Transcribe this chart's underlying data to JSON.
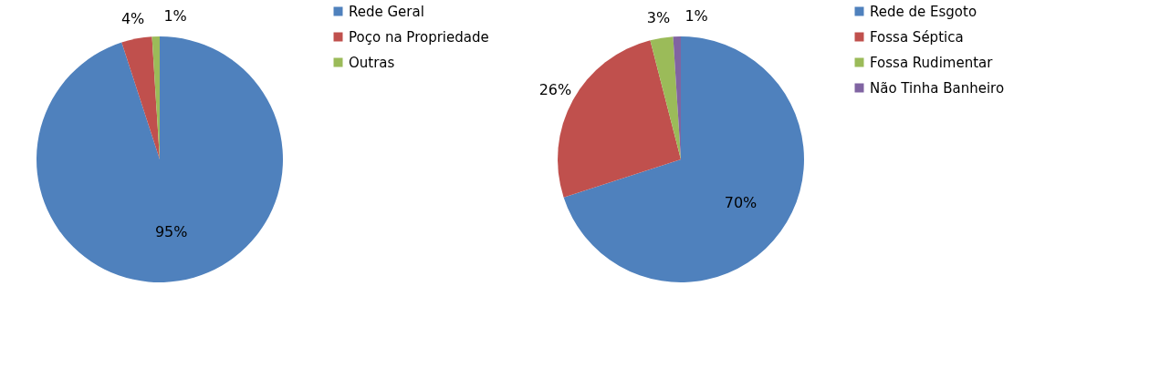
{
  "chart_data": [
    {
      "type": "pie",
      "categories": [
        "Rede Geral",
        "Poço na Propriedade",
        "Outras"
      ],
      "values": [
        95,
        4,
        1
      ],
      "colors": [
        "#4f81bd",
        "#c0504d",
        "#9bbb59"
      ],
      "value_labels": [
        "95%",
        "4%",
        "1%"
      ],
      "legend": "right"
    },
    {
      "type": "pie",
      "categories": [
        "Rede de Esgoto",
        "Fossa Séptica",
        "Fossa Rudimentar",
        "Não Tinha Banheiro"
      ],
      "values": [
        70,
        26,
        3,
        1
      ],
      "colors": [
        "#4f81bd",
        "#c0504d",
        "#9bbb59",
        "#8064a2"
      ],
      "value_labels": [
        "70%",
        "26%",
        "3%",
        "1%"
      ],
      "legend": "right"
    }
  ]
}
